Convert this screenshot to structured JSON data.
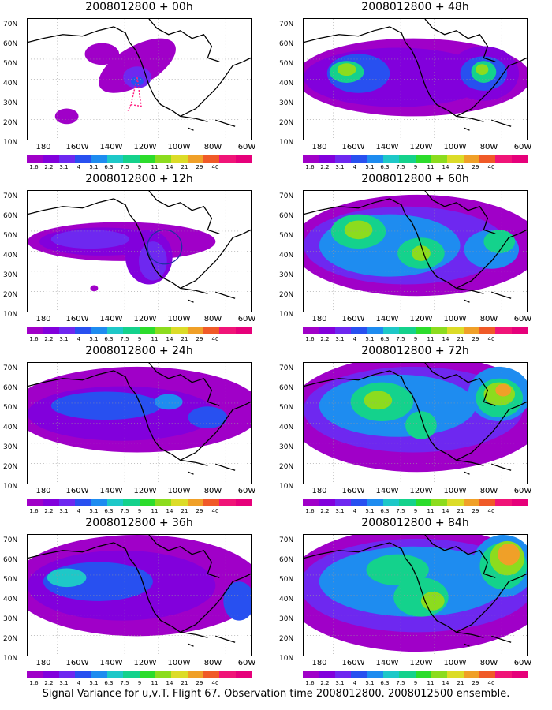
{
  "panels": [
    {
      "title": "2008012800 + 00h"
    },
    {
      "title": "2008012800 + 48h"
    },
    {
      "title": "2008012800 + 12h"
    },
    {
      "title": "2008012800 + 60h"
    },
    {
      "title": "2008012800 + 24h"
    },
    {
      "title": "2008012800 + 72h"
    },
    {
      "title": "2008012800 + 36h"
    },
    {
      "title": "2008012800 + 84h"
    }
  ],
  "y_axis_labels": [
    "70N",
    "60N",
    "50N",
    "40N",
    "30N",
    "20N",
    "10N"
  ],
  "x_axis_labels": [
    "180",
    "160W",
    "140W",
    "120W",
    "100W",
    "80W",
    "60W"
  ],
  "colorbar": {
    "labels": [
      "1.6",
      "2.2",
      "3.1",
      "4",
      "5.1",
      "6.3",
      "7.5",
      "9",
      "11",
      "14",
      "21",
      "29",
      "40"
    ],
    "colors": [
      "#a000c8",
      "#8200dc",
      "#6e28f0",
      "#2850f0",
      "#1e8cf0",
      "#1ec8c8",
      "#14d28c",
      "#2cdc2c",
      "#8cdc1e",
      "#dcdc28",
      "#f0a028",
      "#f05a28",
      "#f01478",
      "#e6007a"
    ]
  },
  "footer": "Signal Variance for u,v,T. Flight 67. Observation time 2008012800. 2008012500 ensemble."
}
